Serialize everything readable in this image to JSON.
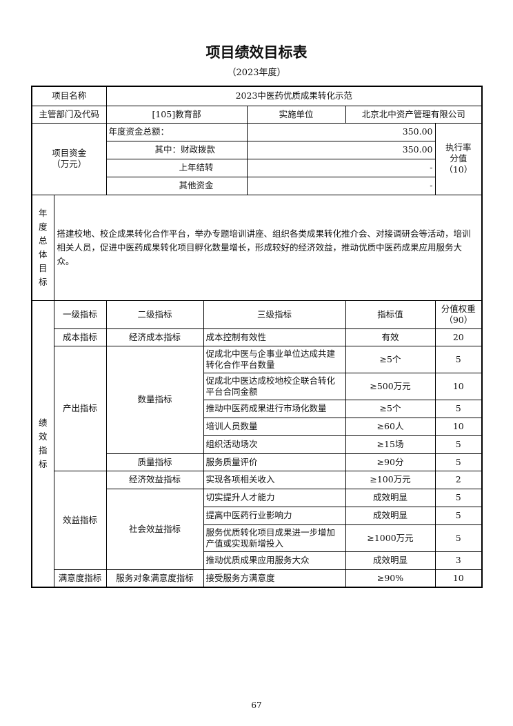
{
  "title": "项目绩效目标表",
  "subtitle": "（2023年度）",
  "project": {
    "name_label": "项目名称",
    "name": "2023中医药优质成果转化示范",
    "dept_label": "主管部门及代码",
    "dept": "[105]教育部",
    "unit_label": "实施单位",
    "unit": "北京北中资产管理有限公司"
  },
  "funds": {
    "label": "项目资金",
    "unit": "（万元）",
    "total_label": "年度资金总额：",
    "total": "350.00",
    "fiscal_label": "其中：财政拨款",
    "fiscal": "350.00",
    "carry_label": "上年结转",
    "carry": "-",
    "other_label": "其他资金",
    "other": "-",
    "exec_label": "执行率分值",
    "exec_score": "（10）"
  },
  "goal": {
    "label": "年度总体目标",
    "text": "搭建校地、校企成果转化合作平台，举办专题培训讲座、组织各类成果转化推介会、对接调研会等活动，培训相关人员，促进中医药成果转化项目孵化数量增长，形成较好的经济效益，推动优质中医药成果应用服务大众。"
  },
  "indicators": {
    "label": "绩效指标",
    "headers": [
      "一级指标",
      "二级指标",
      "三级指标",
      "指标值",
      "分值权重（90）"
    ],
    "rows": [
      {
        "l1": "成本指标",
        "l2": "经济成本指标",
        "l3": "成本控制有效性",
        "value": "有效",
        "weight": "20"
      },
      {
        "l1": "产出指标",
        "l2": "数量指标",
        "l3": "促成北中医与企事业单位达成共建转化合作平台数量",
        "value": "≥5个",
        "weight": "5"
      },
      {
        "l3": "促成北中医达成校地校企联合转化平台合同金额",
        "value": "≥500万元",
        "weight": "10"
      },
      {
        "l3": "推动中医药成果进行市场化数量",
        "value": "≥5个",
        "weight": "5"
      },
      {
        "l3": "培训人员数量",
        "value": "≥60人",
        "weight": "10"
      },
      {
        "l3": "组织活动场次",
        "value": "≥15场",
        "weight": "5"
      },
      {
        "l2": "质量指标",
        "l3": "服务质量评价",
        "value": "≥90分",
        "weight": "5"
      },
      {
        "l1": "效益指标",
        "l2": "经济效益指标",
        "l3": "实现各项相关收入",
        "value": "≥100万元",
        "weight": "2"
      },
      {
        "l2": "社会效益指标",
        "l3": "切实提升人才能力",
        "value": "成效明显",
        "weight": "5"
      },
      {
        "l3": "提高中医药行业影响力",
        "value": "成效明显",
        "weight": "5"
      },
      {
        "l3": "服务优质转化项目成果进一步增加产值或实现新增投入",
        "value": "≥1000万元",
        "weight": "5"
      },
      {
        "l3": "推动优质成果应用服务大众",
        "value": "成效明显",
        "weight": "3"
      },
      {
        "l1": "满意度指标",
        "l2": "服务对象满意度指标",
        "l3": "接受服务方满意度",
        "value": "≥90%",
        "weight": "10"
      }
    ]
  },
  "page_number": "67"
}
